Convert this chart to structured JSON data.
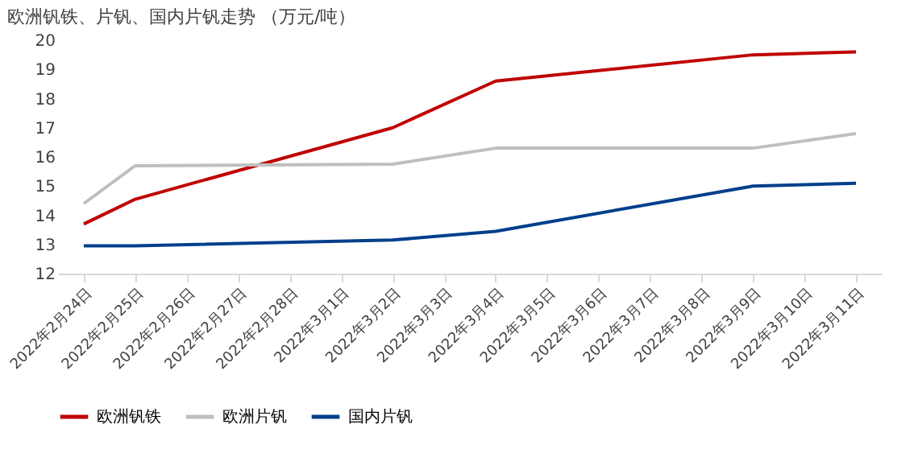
{
  "chart_data": {
    "type": "line",
    "title": "欧洲钒铁、片钒、国内片钒走势 （万元/吨）",
    "categories": [
      "2022年2月24日",
      "2022年2月25日",
      "2022年2月26日",
      "2022年2月27日",
      "2022年2月28日",
      "2022年3月1日",
      "2022年3月2日",
      "2022年3月3日",
      "2022年3月4日",
      "2022年3月5日",
      "2022年3月6日",
      "2022年3月7日",
      "2022年3月8日",
      "2022年3月9日",
      "2022年3月10日",
      "2022年3月11日"
    ],
    "series": [
      {
        "name": "欧洲钒铁",
        "color": "#c00000",
        "values": [
          13.7,
          14.55,
          null,
          null,
          null,
          null,
          17.0,
          null,
          18.6,
          null,
          null,
          null,
          null,
          19.5,
          null,
          19.6
        ]
      },
      {
        "name": "欧洲片钒",
        "color": "#bfbfbf",
        "values": [
          14.4,
          15.7,
          null,
          null,
          null,
          null,
          15.75,
          null,
          16.3,
          null,
          null,
          null,
          null,
          16.3,
          null,
          16.8
        ]
      },
      {
        "name": "国内片钒",
        "color": "#003f8c",
        "values": [
          12.95,
          12.95,
          null,
          null,
          null,
          null,
          13.15,
          null,
          13.45,
          null,
          null,
          null,
          null,
          15.0,
          null,
          15.1
        ]
      }
    ],
    "ylim": [
      12,
      20
    ],
    "yticks": [
      12,
      13,
      14,
      15,
      16,
      17,
      18,
      19,
      20
    ],
    "grid": false,
    "legend": "bottom",
    "marker": "none",
    "line_style": "solid"
  }
}
